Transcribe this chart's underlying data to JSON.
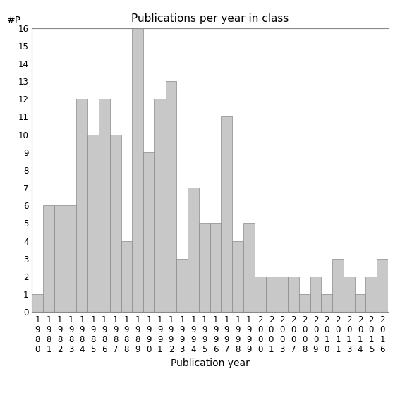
{
  "title": "Publications per year in class",
  "xlabel": "Publication year",
  "ylabel": "#P",
  "categories": [
    "1980",
    "1981",
    "1982",
    "1983",
    "1984",
    "1985",
    "1986",
    "1987",
    "1988",
    "1989",
    "1990",
    "1991",
    "1992",
    "1993",
    "1994",
    "1995",
    "1996",
    "1997",
    "1998",
    "1999",
    "2000",
    "2001",
    "2003",
    "2007",
    "2008",
    "2009",
    "2010",
    "2011",
    "2013",
    "2014",
    "2015",
    "2016"
  ],
  "values": [
    1,
    6,
    6,
    6,
    12,
    10,
    12,
    10,
    4,
    16,
    9,
    12,
    13,
    3,
    7,
    5,
    5,
    11,
    4,
    5,
    2,
    2,
    2,
    2,
    1,
    2,
    1,
    3,
    2,
    1,
    2,
    3
  ],
  "bar_color": "#c8c8c8",
  "bar_edge_color": "#888888",
  "background_color": "#ffffff",
  "ylim": [
    0,
    16
  ],
  "yticks": [
    0,
    1,
    2,
    3,
    4,
    5,
    6,
    7,
    8,
    9,
    10,
    11,
    12,
    13,
    14,
    15,
    16
  ],
  "title_fontsize": 11,
  "axis_label_fontsize": 10,
  "tick_label_fontsize": 8.5
}
